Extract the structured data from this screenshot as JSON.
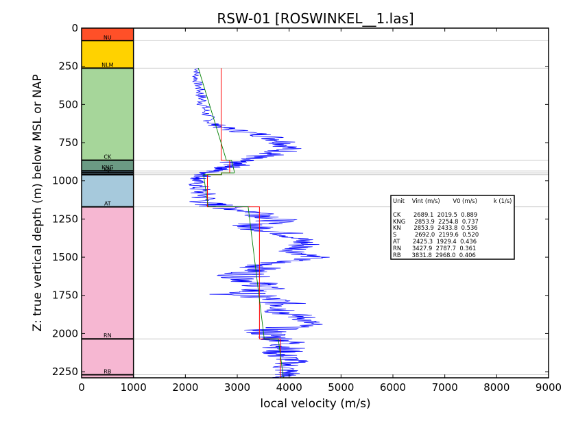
{
  "chart_data": {
    "type": "line",
    "title": "RSW-01 [ROSWINKEL__1.las]",
    "xlabel": "local velocity (m/s)",
    "ylabel": "Z: true vertical depth (m) below MSL or NAP",
    "xlim": [
      0,
      9000
    ],
    "ylim": [
      2290,
      0
    ],
    "y_inverted": true,
    "x_ticks": [
      "0",
      "1000",
      "2000",
      "3000",
      "4000",
      "5000",
      "6000",
      "7000",
      "8000",
      "9000"
    ],
    "y_ticks": [
      "0",
      "250",
      "500",
      "750",
      "1000",
      "1250",
      "1500",
      "1750",
      "2000",
      "2250"
    ],
    "grid": false,
    "units": [
      {
        "name": "NU",
        "top": 0,
        "base": 82,
        "color": "#ff5028"
      },
      {
        "name": "NLM",
        "top": 82,
        "base": 262,
        "color": "#ffd200"
      },
      {
        "name": "CK",
        "top": 262,
        "base": 865,
        "color": "#a6d69a"
      },
      {
        "name": "KNG",
        "top": 865,
        "base": 935,
        "color": "#6b9a84"
      },
      {
        "name": "KN",
        "top": 935,
        "base": 948,
        "color": "#5b7f95"
      },
      {
        "name": "S",
        "top": 948,
        "base": 960,
        "color": "#8fb8d2"
      },
      {
        "name": "AT",
        "top": 960,
        "base": 1170,
        "color": "#a6c9dc"
      },
      {
        "name": "RN",
        "top": 1170,
        "base": 2035,
        "color": "#f6b7d2"
      },
      {
        "name": "RB",
        "top": 2035,
        "base": 2290,
        "color": "#f6b7d2"
      }
    ],
    "unit_label_depths": {
      "NU": 82,
      "NLM": 262,
      "CK": 865,
      "KNG": 935,
      "KN": 948,
      "S": 960,
      "AT": 1170,
      "RN": 2035,
      "RB": 2270
    },
    "boundary_lines": [
      82,
      262,
      865,
      935,
      948,
      960,
      1170,
      2035,
      2270
    ],
    "velocity_profile": {
      "name": "local velocity",
      "color": "#0000ff",
      "depth": [
        262,
        320,
        380,
        440,
        500,
        560,
        620,
        660,
        700,
        740,
        780,
        820,
        850,
        880,
        900,
        920,
        950,
        980,
        1000,
        1050,
        1100,
        1150,
        1170,
        1220,
        1260,
        1300,
        1340,
        1380,
        1420,
        1460,
        1500,
        1540,
        1580,
        1620,
        1660,
        1700,
        1740,
        1780,
        1820,
        1860,
        1900,
        1940,
        1980,
        2020,
        2060,
        2100,
        2140,
        2180,
        2220,
        2260,
        2290
      ],
      "velocity": [
        2250,
        2200,
        2250,
        2300,
        2350,
        2400,
        2500,
        2800,
        3500,
        3900,
        4000,
        3800,
        3200,
        2900,
        3000,
        2700,
        2400,
        2300,
        2200,
        2250,
        2350,
        2400,
        2800,
        3600,
        3800,
        3200,
        3900,
        4200,
        4300,
        4100,
        4500,
        3600,
        3400,
        3100,
        3300,
        3600,
        3000,
        3700,
        4000,
        3900,
        4300,
        4400,
        3500,
        3700,
        4000,
        3900,
        3800,
        4100,
        3900,
        4000,
        3800
      ],
      "spread": [
        80,
        80,
        100,
        120,
        140,
        120,
        150,
        250,
        300,
        350,
        300,
        400,
        350,
        300,
        250,
        250,
        200,
        200,
        150,
        250,
        300,
        400,
        500,
        500,
        400,
        500,
        400,
        300,
        400,
        300,
        300,
        450,
        400,
        500,
        450,
        400,
        600,
        400,
        500,
        450,
        300,
        300,
        500,
        400,
        400,
        450,
        400,
        300,
        300,
        300,
        200
      ]
    },
    "vint_steps": {
      "name": "Vint",
      "color": "#ff0000",
      "segments": [
        {
          "unit": "CK",
          "top": 262,
          "base": 865,
          "value": 2689.1
        },
        {
          "unit": "KNG",
          "top": 865,
          "base": 935,
          "value": 2853.9
        },
        {
          "unit": "KN",
          "top": 935,
          "base": 948,
          "value": 2853.9
        },
        {
          "unit": "S",
          "top": 948,
          "base": 960,
          "value": 2692.0
        },
        {
          "unit": "AT",
          "top": 960,
          "base": 1170,
          "value": 2425.3
        },
        {
          "unit": "RN",
          "top": 1170,
          "base": 2035,
          "value": 3427.9
        },
        {
          "unit": "RB",
          "top": 2035,
          "base": 2290,
          "value": 3831.8
        }
      ]
    },
    "trend_lines": {
      "name": "V0 + k z",
      "color": "#008000",
      "segments": [
        {
          "unit": "CK",
          "v_top": 2250,
          "v_base": 2790,
          "top": 262,
          "base": 865
        },
        {
          "unit": "KNG",
          "v_top": 2890,
          "v_base": 2940,
          "top": 865,
          "base": 935
        },
        {
          "unit": "KN",
          "v_top": 2940,
          "v_base": 2940,
          "top": 935,
          "base": 948
        },
        {
          "unit": "S",
          "v_top": 2690,
          "v_base": 2700,
          "top": 948,
          "base": 960
        },
        {
          "unit": "AT",
          "v_top": 2350,
          "v_base": 2440,
          "top": 960,
          "base": 1170
        },
        {
          "unit": "RN",
          "v_top": 3210,
          "v_base": 3520,
          "top": 1170,
          "base": 2035
        },
        {
          "unit": "RB",
          "v_top": 3790,
          "v_base": 3890,
          "top": 2035,
          "base": 2290
        }
      ]
    },
    "legend": {
      "placement": "right",
      "header": "Unit    Vint (m/s)       V0 (m/s)         k (1/s)",
      "rows": [
        "CK       2689.1  2019.5  0.889",
        "KNG     2853.9  2254.8  0.737",
        "KN       2853.9  2433.8  0.536",
        "S          2692.0  2199.6  0.520",
        "AT       2425.3  1929.4  0.436",
        "RN      3427.9  2787.7  0.361",
        "RB      3831.8  2968.0  0.406"
      ]
    }
  }
}
